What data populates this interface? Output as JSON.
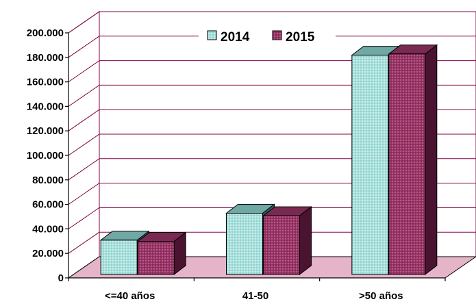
{
  "chart_data": {
    "type": "bar",
    "categories": [
      "<=40 años",
      "41-50",
      ">50 años"
    ],
    "series": [
      {
        "name": "2014",
        "values": [
          28000,
          50000,
          179000
        ],
        "color": "#a8e0dc"
      },
      {
        "name": "2015",
        "values": [
          27000,
          48000,
          180000
        ],
        "color": "#993366"
      }
    ],
    "y_ticks": [
      "0",
      "20.000",
      "40.000",
      "60.000",
      "80.000",
      "100.000",
      "120.000",
      "140.000",
      "160.000",
      "180.000",
      "200.000"
    ],
    "ylim": [
      0,
      200000
    ],
    "grid": true,
    "legend_position": "top-center",
    "style": "3d-clustered-column",
    "gridline_color": "#800040",
    "floor_color": "#e6b4c8"
  }
}
